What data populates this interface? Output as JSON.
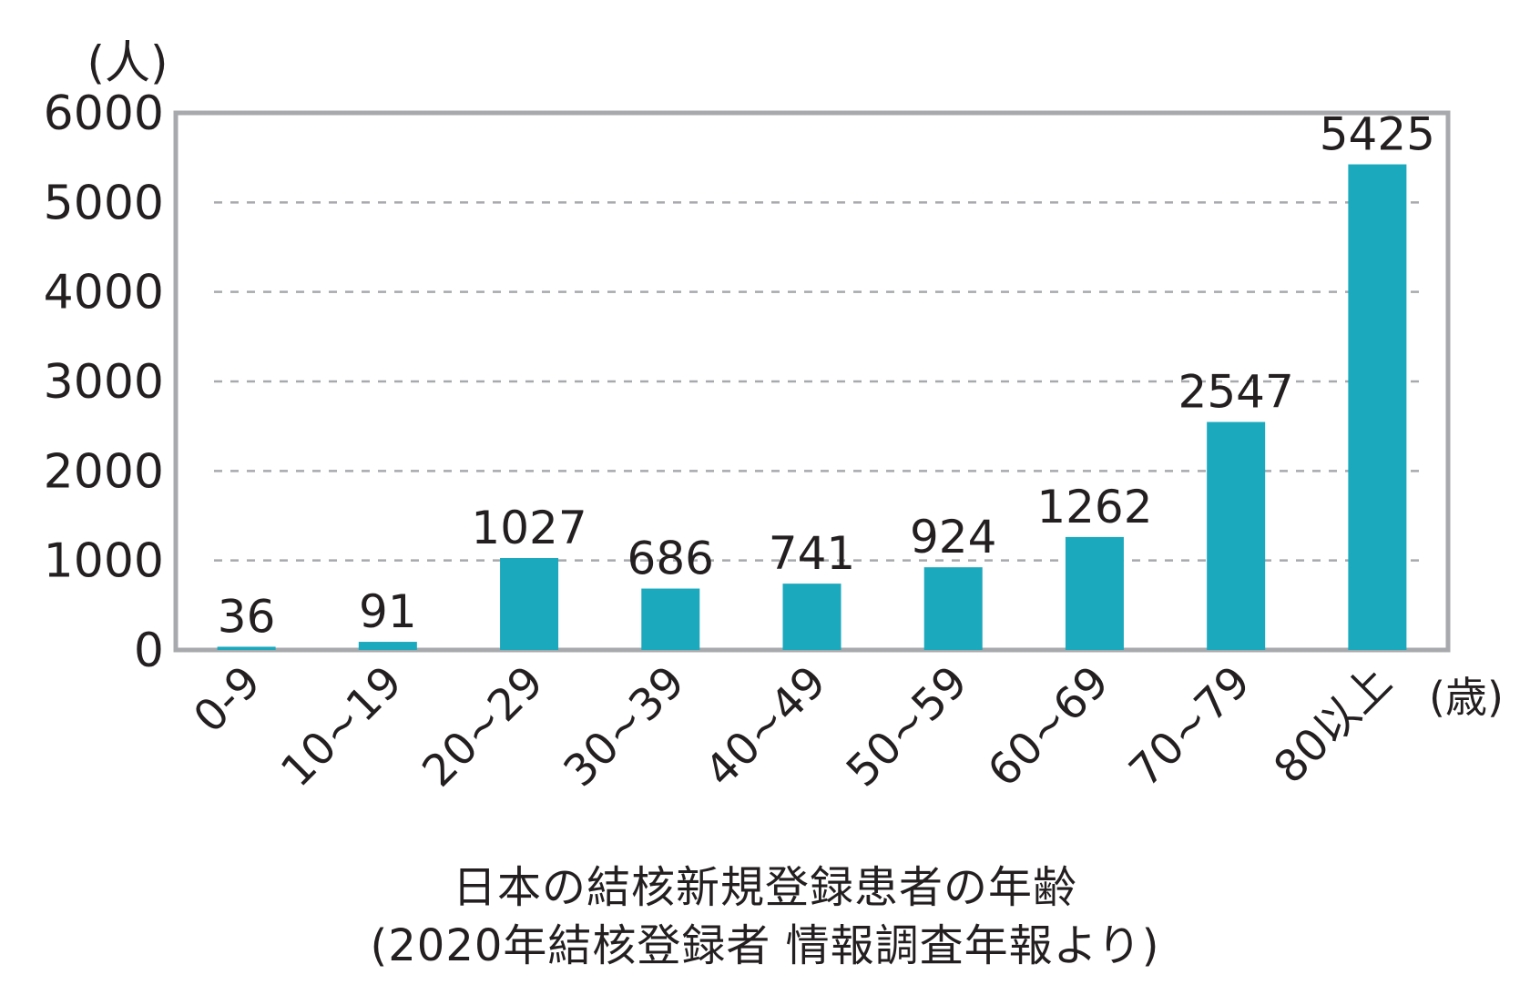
{
  "chart_data": {
    "type": "bar",
    "title": "",
    "ylabel": "(人)",
    "xlabel": "(歳)",
    "categories": [
      "0-9",
      "10~19",
      "20~29",
      "30~39",
      "40~49",
      "50~59",
      "60~69",
      "70~79",
      "80以上"
    ],
    "values": [
      36,
      91,
      1027,
      686,
      741,
      924,
      1262,
      2547,
      5425
    ],
    "ylim": [
      0,
      6000
    ],
    "yticks": [
      0,
      1000,
      2000,
      3000,
      4000,
      5000,
      6000
    ],
    "grid": "horizontal dashed",
    "bar_color": "#1ba9bd",
    "data_labels": true
  },
  "caption": {
    "line1": "日本の結核新規登録患者の年齢",
    "line2": "(2020年結核登録者 情報調査年報より)"
  }
}
